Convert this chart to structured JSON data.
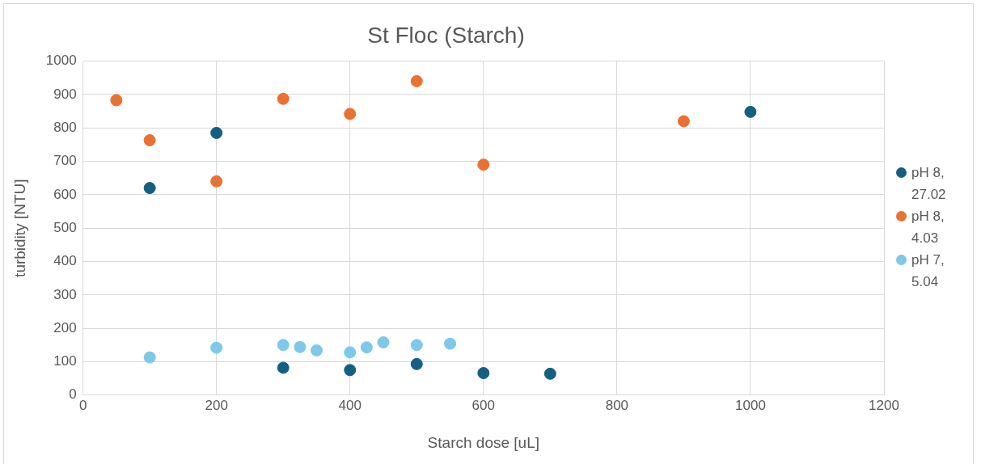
{
  "chart_data": {
    "type": "scatter",
    "title": "St Floc (Starch)",
    "xlabel": "Starch dose [uL]",
    "ylabel": "turbidity [NTU]",
    "xlim": [
      0,
      1200
    ],
    "xticks": [
      0,
      200,
      400,
      600,
      800,
      1000,
      1200
    ],
    "ylim": [
      0,
      1000
    ],
    "yticks": [
      0,
      100,
      200,
      300,
      400,
      500,
      600,
      700,
      800,
      900,
      1000
    ],
    "grid": true,
    "legend": "right",
    "marker": "circle",
    "series": [
      {
        "name": "pH 8, 27.02",
        "color": "#156082",
        "x": [
          100,
          200,
          300,
          400,
          500,
          600,
          700,
          1000
        ],
        "values": [
          620,
          785,
          82,
          75,
          93,
          66,
          64,
          848
        ]
      },
      {
        "name": "pH 8, 4.03",
        "color": "#e97132",
        "x": [
          50,
          100,
          200,
          300,
          400,
          500,
          600,
          900
        ],
        "values": [
          883,
          763,
          640,
          887,
          842,
          940,
          690,
          820
        ]
      },
      {
        "name": "pH 7, 5.04",
        "color": "#7ec8ea",
        "x": [
          100,
          200,
          300,
          325,
          350,
          400,
          425,
          450,
          500,
          550
        ],
        "values": [
          113,
          142,
          150,
          144,
          134,
          128,
          143,
          158,
          150,
          154
        ]
      }
    ]
  }
}
